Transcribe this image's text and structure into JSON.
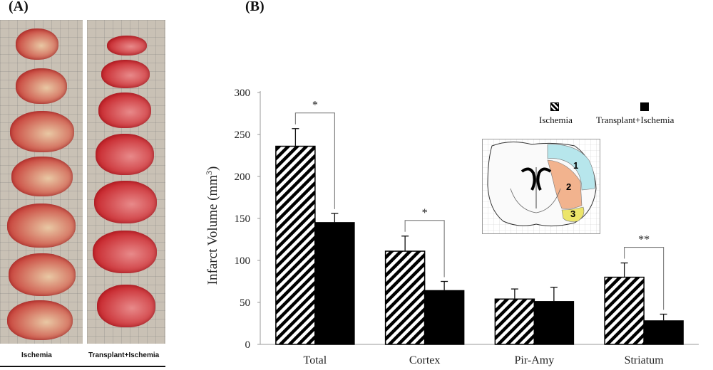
{
  "panels": {
    "a_label": "(A)",
    "b_label": "(B)"
  },
  "photo_panel": {
    "captions": [
      "Ischemia",
      "Transplant+Ischemia"
    ]
  },
  "inset": {
    "region_labels": [
      "1",
      "2",
      "3"
    ]
  },
  "chart_data": {
    "type": "bar",
    "ylabel": "Infarct Volume (mm3)",
    "ylim": [
      0,
      300
    ],
    "yticks": [
      0,
      50,
      100,
      150,
      200,
      250,
      300
    ],
    "categories": [
      "Total",
      "Cortex",
      "Pir-Amy",
      "Striatum"
    ],
    "series": [
      {
        "name": "Ischemia",
        "values": [
          236,
          111,
          54,
          80
        ],
        "errors": [
          21,
          18,
          12,
          17
        ],
        "pattern": "hatched"
      },
      {
        "name": "Transplant+Ischemia",
        "values": [
          145,
          64,
          51,
          28
        ],
        "errors": [
          11,
          11,
          17,
          8
        ],
        "pattern": "solid"
      }
    ],
    "significance": [
      "*",
      "*",
      "",
      "**"
    ],
    "legend_position": "top-right",
    "grid": false
  }
}
